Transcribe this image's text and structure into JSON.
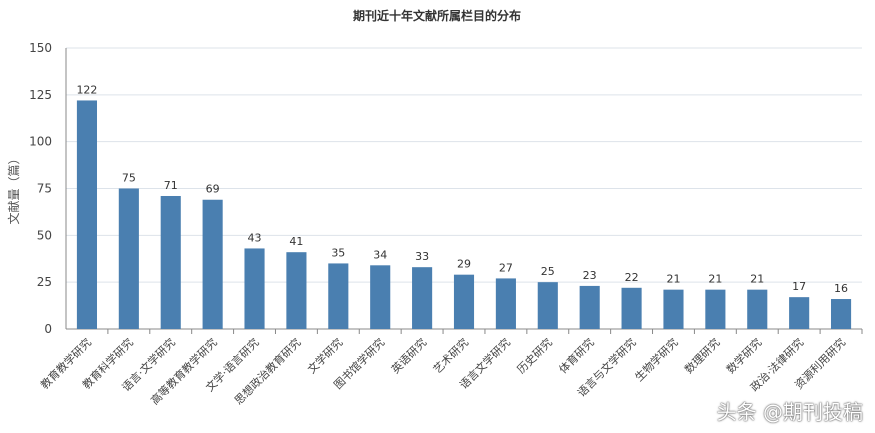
{
  "chart_data": {
    "type": "bar",
    "title": "期刊近十年文献所属栏目的分布",
    "xlabel": "",
    "ylabel": "文献量（篇）",
    "ylim": [
      0,
      150
    ],
    "yticks": [
      0,
      25,
      50,
      75,
      100,
      125,
      150
    ],
    "grid": true,
    "bar_color": "#4a7fb0",
    "categories": [
      "教育教学研究",
      "教育科学研究",
      "语言·文学研究",
      "高等教育教学研究",
      "文学·语言研究",
      "思想政治教育研究",
      "文学研究",
      "图书馆学研究",
      "英语研究",
      "艺术研究",
      "语言文学研究",
      "历史研究",
      "体育研究",
      "语言与文学研究",
      "生物学研究",
      "数理研究",
      "数学研究",
      "政治·法律研究",
      "资源利用研究"
    ],
    "values": [
      122,
      75,
      71,
      69,
      43,
      41,
      35,
      34,
      33,
      29,
      27,
      25,
      23,
      22,
      21,
      21,
      21,
      17,
      16
    ]
  },
  "watermark": "头条 @期刊投稿"
}
